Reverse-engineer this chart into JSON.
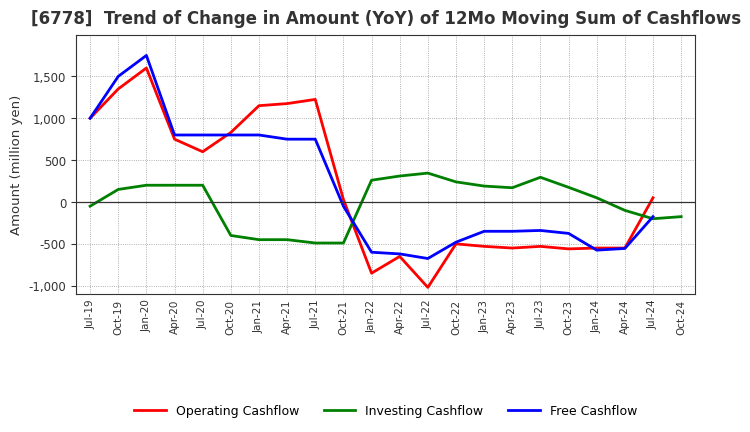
{
  "title": "[6778]  Trend of Change in Amount (YoY) of 12Mo Moving Sum of Cashflows",
  "ylabel": "Amount (million yen)",
  "x_labels": [
    "Jul-19",
    "Oct-19",
    "Jan-20",
    "Apr-20",
    "Jul-20",
    "Oct-20",
    "Jan-21",
    "Apr-21",
    "Jul-21",
    "Oct-21",
    "Jan-22",
    "Apr-22",
    "Jul-22",
    "Oct-22",
    "Jan-23",
    "Apr-23",
    "Jul-23",
    "Oct-23",
    "Jan-24",
    "Apr-24",
    "Jul-24",
    "Oct-24"
  ],
  "operating": [
    1000,
    1350,
    1600,
    750,
    600,
    830,
    1150,
    1175,
    1225,
    30,
    -850,
    -650,
    -1020,
    -500,
    -530,
    -550,
    -530,
    -560,
    -550,
    -550,
    50,
    null
  ],
  "investing": [
    -50,
    150,
    200,
    200,
    200,
    -400,
    -450,
    -450,
    -490,
    -490,
    260,
    310,
    345,
    240,
    190,
    170,
    295,
    175,
    50,
    -100,
    -200,
    -175
  ],
  "free": [
    1000,
    1500,
    1750,
    800,
    800,
    800,
    800,
    750,
    750,
    -50,
    -600,
    -620,
    -675,
    -480,
    -350,
    -350,
    -340,
    -375,
    -575,
    -555,
    -175,
    null
  ],
  "operating_color": "#ff0000",
  "investing_color": "#008000",
  "free_color": "#0000ff",
  "ylim": [
    -1100,
    2000
  ],
  "yticks": [
    -1000,
    -500,
    0,
    500,
    1000,
    1500
  ],
  "background_color": "#ffffff",
  "grid_color": "#999999",
  "title_fontsize": 12,
  "legend_labels": [
    "Operating Cashflow",
    "Investing Cashflow",
    "Free Cashflow"
  ]
}
